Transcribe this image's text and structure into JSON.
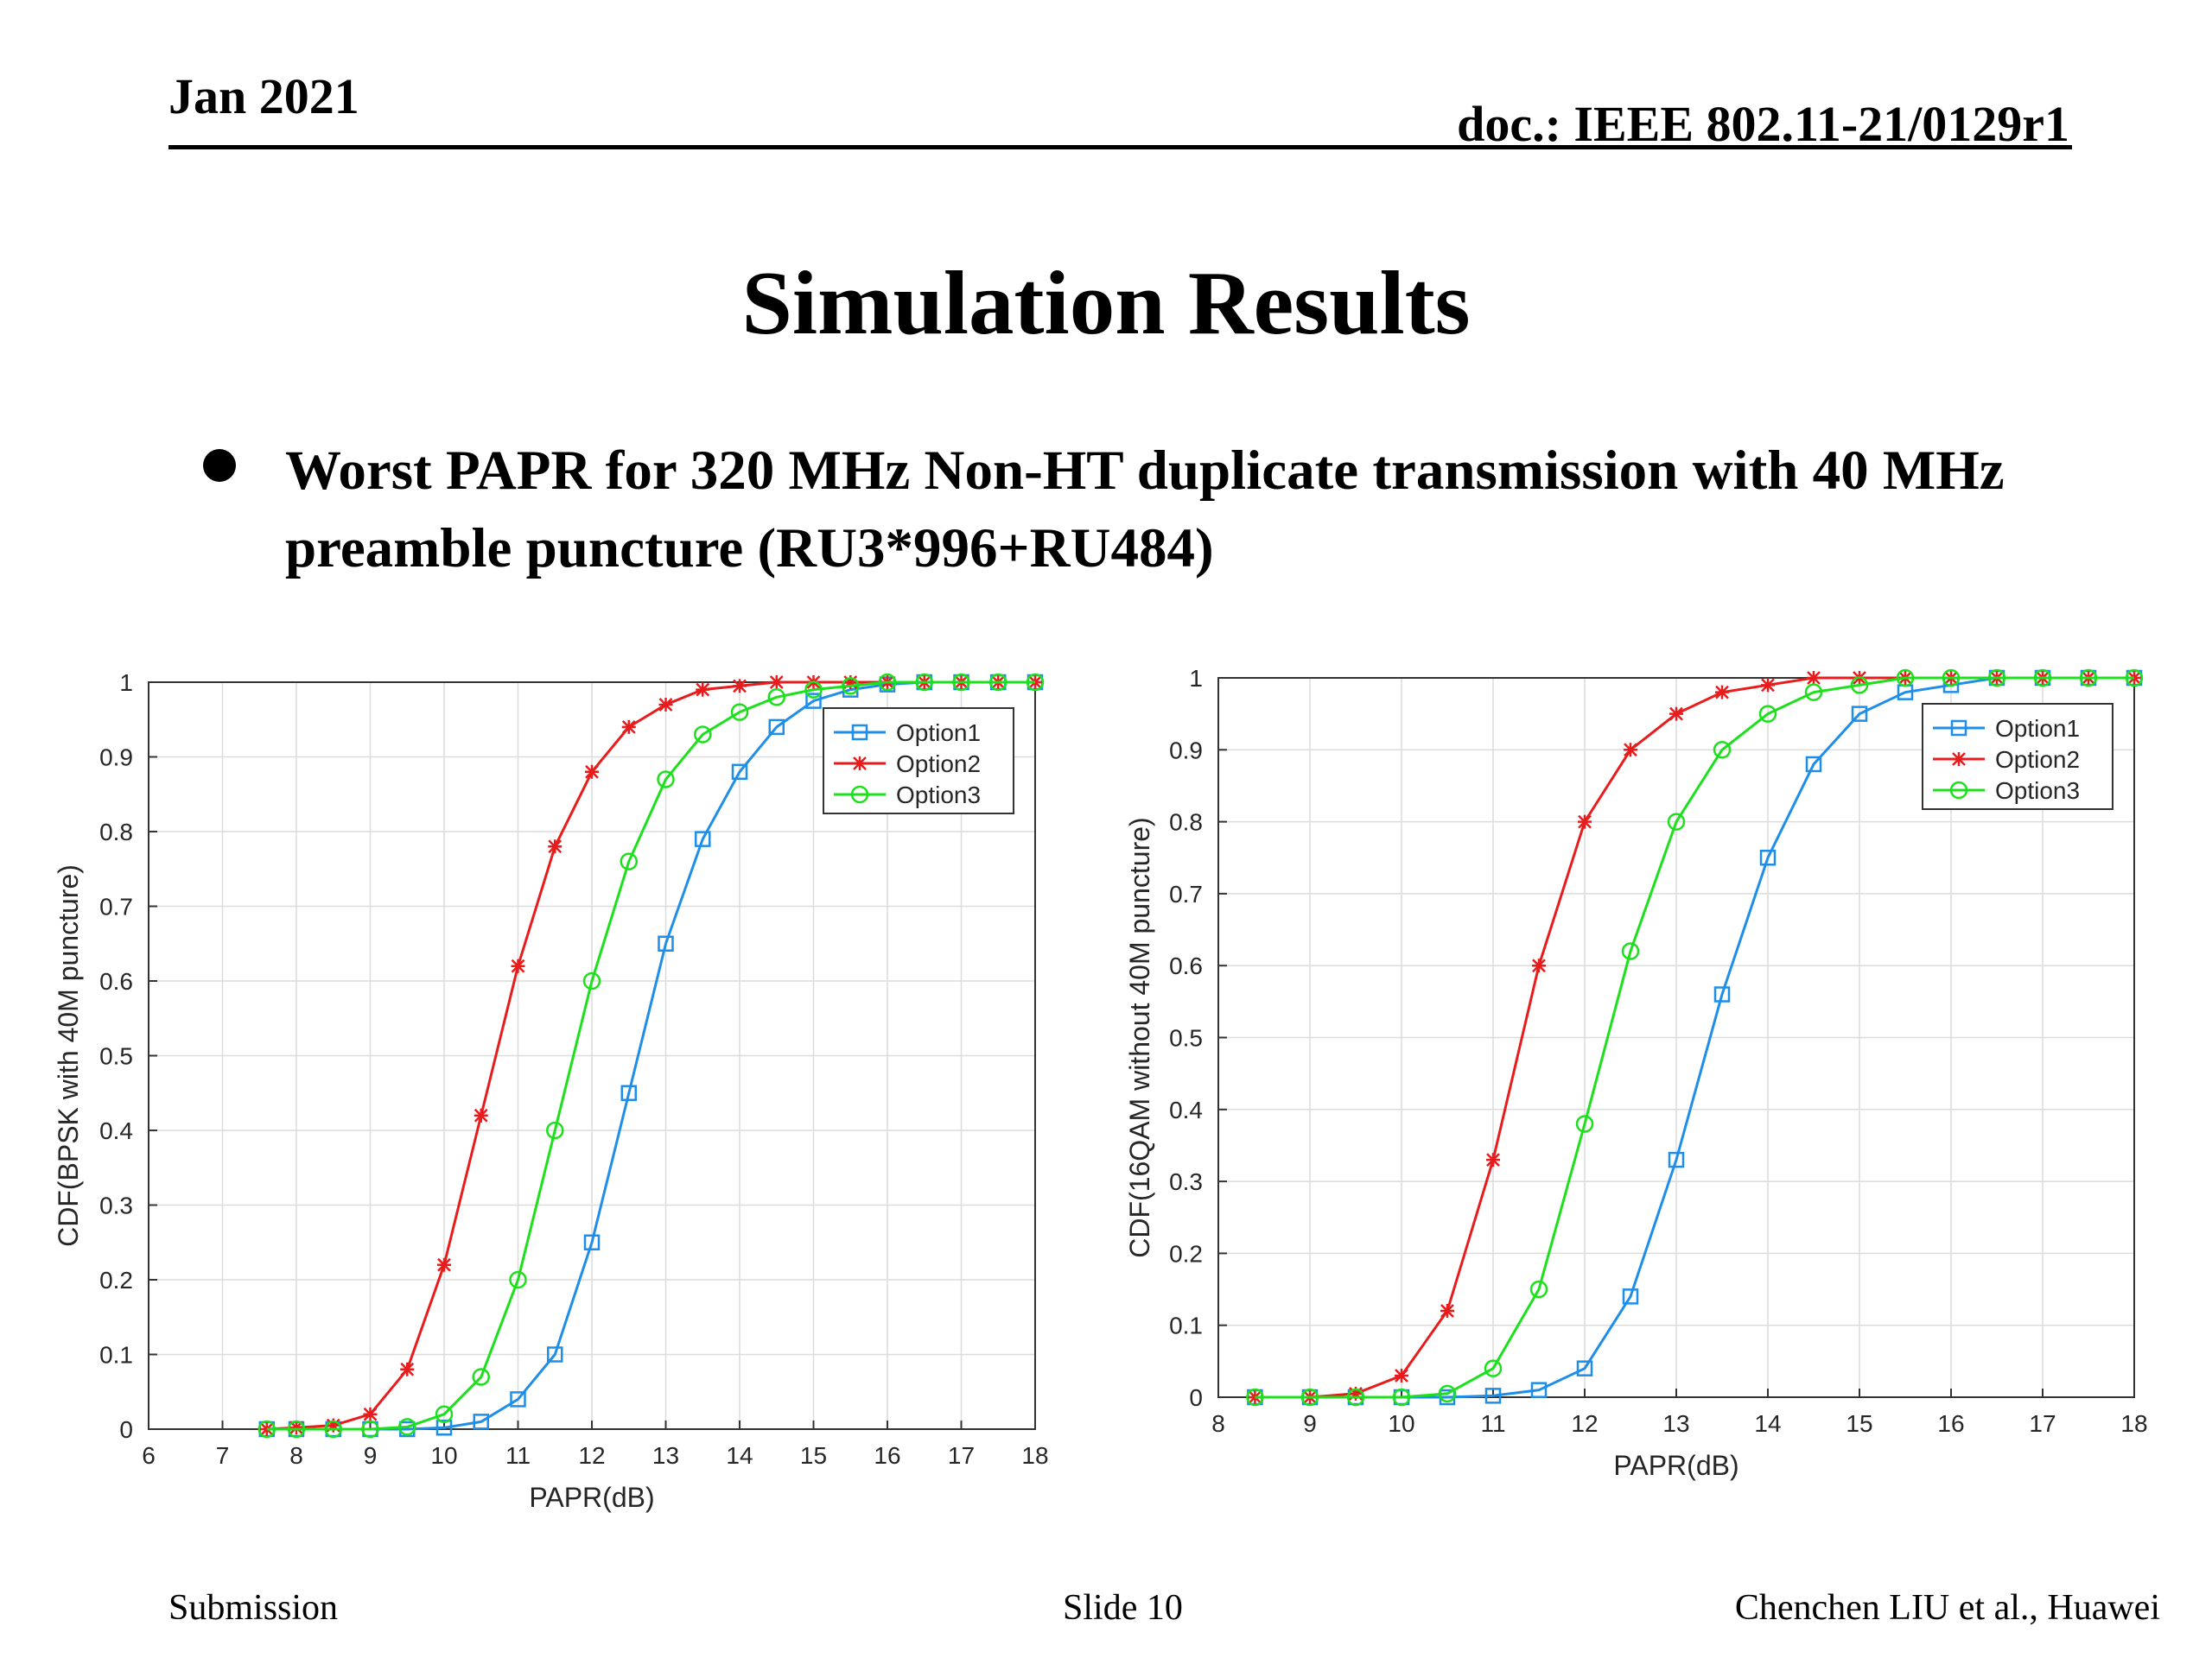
{
  "header": {
    "date": "Jan 2021",
    "doc": "doc.: IEEE 802.11-21/0129r1"
  },
  "slide": {
    "title": "Simulation Results",
    "bullet": "Worst PAPR for 320 MHz Non-HT duplicate transmission with 40 MHz  preamble puncture (RU3*996+RU484)"
  },
  "footer": {
    "left": "Submission",
    "center": "Slide 10",
    "right": "Chenchen LIU et al., Huawei"
  },
  "colors": {
    "option1": "#1f8ee8",
    "option2": "#e81c1c",
    "option3": "#1de01d"
  },
  "chart_data": [
    {
      "type": "line",
      "xlabel": "PAPR(dB)",
      "ylabel": "CDF(BPSK with 40M puncture)",
      "xlim": [
        6,
        18
      ],
      "ylim": [
        0,
        1
      ],
      "xticks": [
        "6",
        "7",
        "8",
        "9",
        "10",
        "11",
        "12",
        "13",
        "14",
        "15",
        "16",
        "17",
        "18"
      ],
      "yticks": [
        "0",
        "0.1",
        "0.2",
        "0.3",
        "0.4",
        "0.5",
        "0.6",
        "0.7",
        "0.8",
        "0.9",
        "1"
      ],
      "grid": true,
      "legend_position": "top-right",
      "series": [
        {
          "name": "Option1",
          "marker": "square",
          "x": [
            7.6,
            8,
            8.5,
            9,
            9.5,
            10,
            10.5,
            11,
            11.5,
            12,
            12.5,
            13,
            13.5,
            14,
            14.5,
            15,
            15.5,
            16,
            16.5,
            17,
            17.5,
            18
          ],
          "y": [
            0,
            0,
            0,
            0,
            0,
            0.002,
            0.01,
            0.04,
            0.1,
            0.25,
            0.45,
            0.65,
            0.79,
            0.88,
            0.94,
            0.975,
            0.99,
            0.997,
            1,
            1,
            1,
            1
          ]
        },
        {
          "name": "Option2",
          "marker": "star",
          "x": [
            7.6,
            8,
            8.5,
            9,
            9.5,
            10,
            10.5,
            11,
            11.5,
            12,
            12.5,
            13,
            13.5,
            14,
            14.5,
            15,
            15.5,
            16,
            16.5,
            17,
            17.5,
            18
          ],
          "y": [
            0,
            0.002,
            0.005,
            0.02,
            0.08,
            0.22,
            0.42,
            0.62,
            0.78,
            0.88,
            0.94,
            0.97,
            0.99,
            0.995,
            1,
            1,
            1,
            1,
            1,
            1,
            1,
            1
          ]
        },
        {
          "name": "Option3",
          "marker": "circle",
          "x": [
            7.6,
            8,
            8.5,
            9,
            9.5,
            10,
            10.5,
            11,
            11.5,
            12,
            12.5,
            13,
            13.5,
            14,
            14.5,
            15,
            15.5,
            16,
            16.5,
            17,
            17.5,
            18
          ],
          "y": [
            0,
            0,
            0,
            0,
            0.003,
            0.02,
            0.07,
            0.2,
            0.4,
            0.6,
            0.76,
            0.87,
            0.93,
            0.96,
            0.98,
            0.99,
            0.995,
            1,
            1,
            1,
            1,
            1
          ]
        }
      ]
    },
    {
      "type": "line",
      "xlabel": "PAPR(dB)",
      "ylabel": "CDF(16QAM without 40M puncture)",
      "xlim": [
        8,
        18
      ],
      "ylim": [
        0,
        1
      ],
      "xticks": [
        "8",
        "9",
        "10",
        "11",
        "12",
        "13",
        "14",
        "15",
        "16",
        "17",
        "18"
      ],
      "yticks": [
        "0",
        "0.1",
        "0.2",
        "0.3",
        "0.4",
        "0.5",
        "0.6",
        "0.7",
        "0.8",
        "0.9",
        "1"
      ],
      "grid": true,
      "legend_position": "top-right",
      "series": [
        {
          "name": "Option1",
          "marker": "square",
          "x": [
            8.4,
            9,
            9.5,
            10,
            10.5,
            11,
            11.5,
            12,
            12.5,
            13,
            13.5,
            14,
            14.5,
            15,
            15.5,
            16,
            16.5,
            17,
            17.5,
            18
          ],
          "y": [
            0,
            0,
            0,
            0,
            0,
            0.002,
            0.01,
            0.04,
            0.14,
            0.33,
            0.56,
            0.75,
            0.88,
            0.95,
            0.98,
            0.99,
            1,
            1,
            1,
            1
          ]
        },
        {
          "name": "Option2",
          "marker": "star",
          "x": [
            8.4,
            9,
            9.5,
            10,
            10.5,
            11,
            11.5,
            12,
            12.5,
            13,
            13.5,
            14,
            14.5,
            15,
            15.5,
            16,
            16.5,
            17,
            17.5,
            18
          ],
          "y": [
            0,
            0,
            0.005,
            0.03,
            0.12,
            0.33,
            0.6,
            0.8,
            0.9,
            0.95,
            0.98,
            0.99,
            1,
            1,
            1,
            1,
            1,
            1,
            1,
            1
          ]
        },
        {
          "name": "Option3",
          "marker": "circle",
          "x": [
            8.4,
            9,
            9.5,
            10,
            10.5,
            11,
            11.5,
            12,
            12.5,
            13,
            13.5,
            14,
            14.5,
            15,
            15.5,
            16,
            16.5,
            17,
            17.5,
            18
          ],
          "y": [
            0,
            0,
            0,
            0,
            0.005,
            0.04,
            0.15,
            0.38,
            0.62,
            0.8,
            0.9,
            0.95,
            0.98,
            0.99,
            1,
            1,
            1,
            1,
            1,
            1
          ]
        }
      ]
    }
  ]
}
